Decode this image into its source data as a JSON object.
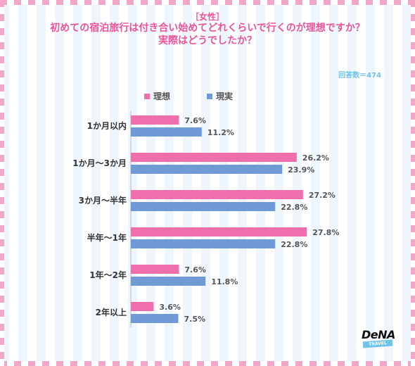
{
  "header": {
    "subtitle": "［女性］",
    "title_line1": "初めての宿泊旅行は付き合い始めてどれくらいで行くのが理想ですか？",
    "title_line2": "実際はどうでしたか？",
    "respondents": "回答数＝474"
  },
  "legend": [
    {
      "label": "理想",
      "color": "#ee6fab"
    },
    {
      "label": "現実",
      "color": "#6f9ad6"
    }
  ],
  "chart_data": {
    "type": "bar",
    "orientation": "horizontal",
    "categories": [
      "1か月以内",
      "1か月〜3か月",
      "3か月〜半年",
      "半年〜1年",
      "1年〜2年",
      "2年以上"
    ],
    "series": [
      {
        "name": "理想",
        "color": "#ee6fab",
        "values": [
          7.6,
          26.2,
          27.2,
          27.8,
          7.6,
          3.6
        ],
        "value_labels": [
          "7.6%",
          "26.2%",
          "27.2%",
          "27.8%",
          "7.6%",
          "3.6%"
        ]
      },
      {
        "name": "現実",
        "color": "#6f9ad6",
        "values": [
          11.2,
          23.9,
          22.8,
          22.8,
          11.8,
          7.5
        ],
        "value_labels": [
          "11.2%",
          "23.9%",
          "22.8%",
          "22.8%",
          "11.8%",
          "7.5%"
        ]
      }
    ],
    "unit": "%",
    "grid": false,
    "legend_position": "top"
  },
  "logo": {
    "name": "DeNA",
    "badge": "TRAVEL"
  }
}
